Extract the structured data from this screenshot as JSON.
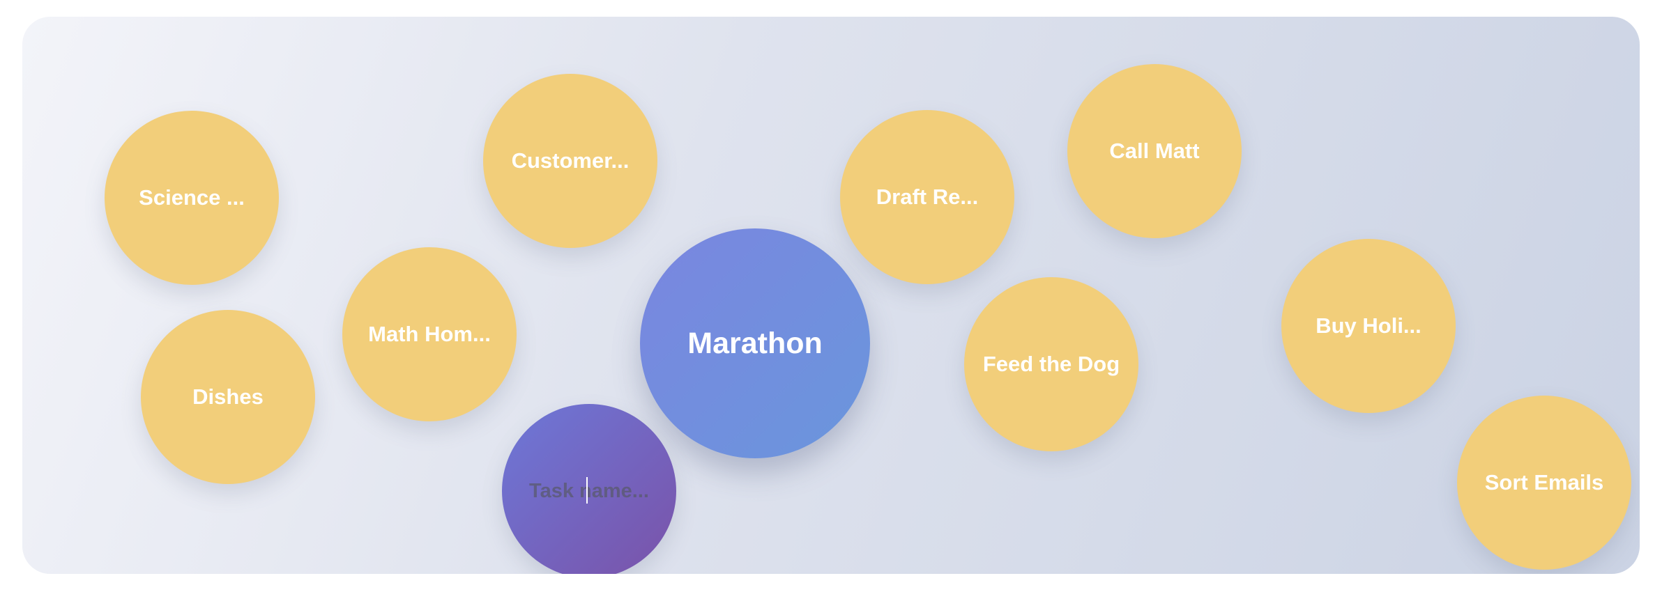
{
  "tasks": [
    "Science ...",
    "Customer...",
    "Draft Re...",
    "Call Matt",
    "Math Hom...",
    "Dishes",
    "Feed the Dog",
    "Buy Holi...",
    "Sort Emails"
  ],
  "focused_task": "Marathon",
  "new_task_placeholder": "Task name..."
}
